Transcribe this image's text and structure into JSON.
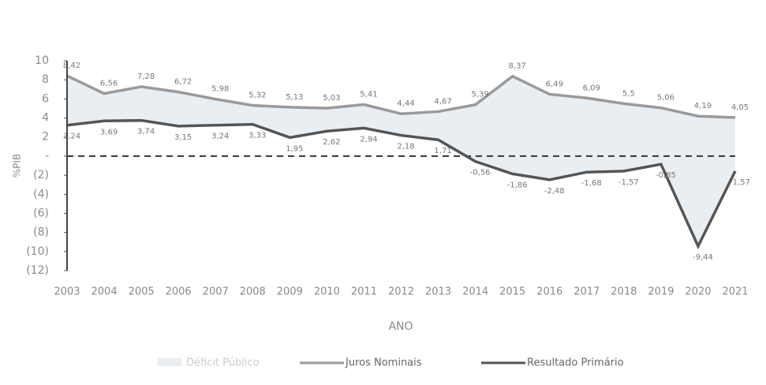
{
  "chart_data": {
    "type": "line",
    "x_label": "ANO",
    "y_label": "%PIB",
    "categories": [
      "2003",
      "2004",
      "2005",
      "2006",
      "2007",
      "2008",
      "2009",
      "2010",
      "2011",
      "2012",
      "2013",
      "2014",
      "2015",
      "2016",
      "2017",
      "2018",
      "2019",
      "2020",
      "2021"
    ],
    "fill": {
      "name": "Déficit Público",
      "color": "#e9eef3"
    },
    "series": [
      {
        "name": "Juros Nominais",
        "color": "#9a9a9a",
        "values": [
          8.42,
          6.56,
          7.28,
          6.72,
          5.98,
          5.32,
          5.13,
          5.03,
          5.41,
          4.44,
          4.67,
          5.39,
          8.37,
          6.49,
          6.09,
          5.5,
          5.06,
          4.19,
          4.05
        ],
        "value_labels": [
          "8,42",
          "6,56",
          "7,28",
          "6,72",
          "5,98",
          "5,32",
          "5,13",
          "5,03",
          "5,41",
          "4,44",
          "4,67",
          "5,39",
          "8,37",
          "6,49",
          "6,09",
          "5,5",
          "5,06",
          "4,19",
          "4,05"
        ]
      },
      {
        "name": "Resultado Primário",
        "color": "#555555",
        "values": [
          3.24,
          3.69,
          3.74,
          3.15,
          3.24,
          3.33,
          1.95,
          2.62,
          2.94,
          2.18,
          1.71,
          -0.56,
          -1.86,
          -2.48,
          -1.68,
          -1.57,
          -0.85,
          -9.44,
          -1.57
        ],
        "value_labels": [
          "3,24",
          "3,69",
          "3,74",
          "3,15",
          "3,24",
          "3,33",
          "1,95",
          "2,62",
          "2,94",
          "2,18",
          "1,71",
          "-0,56",
          "-1,86",
          "-2,48",
          "-1,68",
          "-1,57",
          "-0,85",
          "-9,44",
          "-1,57"
        ]
      }
    ],
    "ylim": [
      -12,
      10
    ],
    "yticks": [
      10,
      8,
      6,
      4,
      2,
      {
        "value": 0,
        "label": "-"
      },
      {
        "value": -2,
        "label": "(2)"
      },
      {
        "value": -4,
        "label": "(4)"
      },
      {
        "value": -6,
        "label": "(6)"
      },
      {
        "value": -8,
        "label": "(8)"
      },
      {
        "value": -10,
        "label": "(10)"
      },
      {
        "value": -12,
        "label": "(12)"
      }
    ]
  }
}
